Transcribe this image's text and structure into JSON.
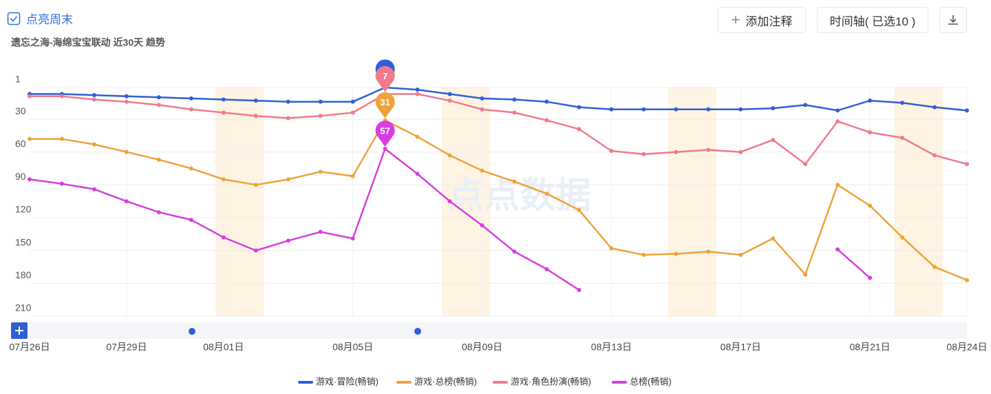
{
  "header": {
    "toggle": "点亮周末",
    "add_note": "添加注释",
    "timeline": "时间轴( 已选10 )"
  },
  "chart_data": {
    "type": "line",
    "subtitle": "遗忘之海-海绵宝宝联动 近30天 趋势",
    "watermark": "点点数据",
    "categories": [
      "07月26日",
      null,
      null,
      "07月29日",
      null,
      null,
      "08月01日",
      null,
      null,
      null,
      "08月05日",
      null,
      null,
      null,
      "08月09日",
      null,
      null,
      null,
      "08月13日",
      null,
      null,
      null,
      "08月17日",
      null,
      null,
      null,
      "08月21日",
      null,
      null,
      "08月24日"
    ],
    "ylim": [
      1,
      210
    ],
    "inverted": true,
    "yticks": [
      1,
      30,
      60,
      90,
      120,
      150,
      180,
      210
    ],
    "grid": true,
    "series": [
      {
        "name": "游戏·冒险(畅销)",
        "color": "#2f5fd6",
        "values": [
          7,
          7,
          8,
          9,
          10,
          11,
          12,
          13,
          14,
          14,
          14,
          1,
          3,
          7,
          11,
          12,
          14,
          19,
          21,
          21,
          21,
          21,
          21,
          20,
          17,
          22,
          13,
          15,
          19,
          22
        ]
      },
      {
        "name": "游戏·总榜(畅销)",
        "color": "#f0a23a",
        "values": [
          48,
          48,
          53,
          60,
          67,
          75,
          85,
          90,
          85,
          78,
          82,
          31,
          46,
          63,
          77,
          87,
          98,
          113,
          148,
          154,
          153,
          151,
          154,
          139,
          172,
          90,
          109,
          138,
          165,
          177
        ]
      },
      {
        "name": "游戏·角色扮演(畅销)",
        "color": "#f07a8c",
        "values": [
          9,
          9,
          12,
          14,
          17,
          21,
          24,
          27,
          29,
          27,
          24,
          7,
          7,
          13,
          21,
          24,
          31,
          39,
          59,
          62,
          60,
          58,
          60,
          49,
          71,
          32,
          42,
          47,
          63,
          71
        ]
      },
      {
        "name": "总榜(畅销)",
        "color": "#d63ee0",
        "values": [
          85,
          89,
          94,
          105,
          115,
          122,
          138,
          150,
          141,
          133,
          139,
          57,
          80,
          105,
          127,
          151,
          167,
          186,
          null,
          null,
          null,
          null,
          null,
          null,
          null,
          149,
          175,
          null,
          null,
          null
        ]
      }
    ],
    "pins": {
      "index": 11
    }
  }
}
